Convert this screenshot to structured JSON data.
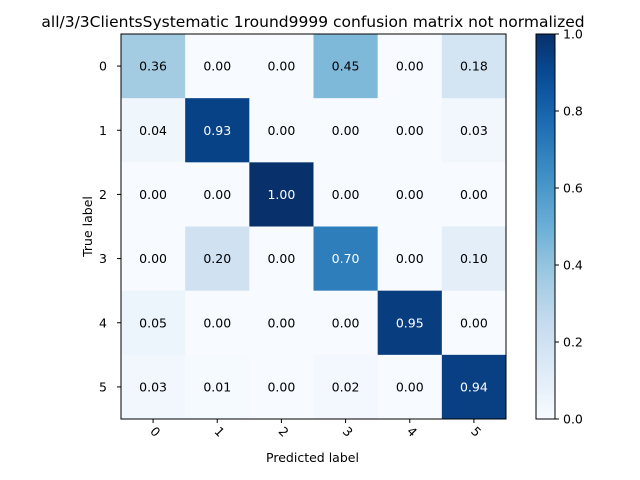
{
  "chart_data": {
    "type": "heatmap",
    "title": "all/3/3ClientsSystematic 1round9999 confusion matrix not normalized",
    "xlabel": "Predicted label",
    "ylabel": "True label",
    "x_categories": [
      "0",
      "1",
      "2",
      "3",
      "4",
      "5"
    ],
    "y_categories": [
      "0",
      "1",
      "2",
      "3",
      "4",
      "5"
    ],
    "values": [
      [
        0.36,
        0.0,
        0.0,
        0.45,
        0.0,
        0.18
      ],
      [
        0.04,
        0.93,
        0.0,
        0.0,
        0.0,
        0.03
      ],
      [
        0.0,
        0.0,
        1.0,
        0.0,
        0.0,
        0.0
      ],
      [
        0.0,
        0.2,
        0.0,
        0.7,
        0.0,
        0.1
      ],
      [
        0.05,
        0.0,
        0.0,
        0.0,
        0.95,
        0.0
      ],
      [
        0.03,
        0.01,
        0.0,
        0.02,
        0.0,
        0.94
      ]
    ],
    "value_format": "0.00",
    "colorbar": {
      "range": [
        0.0,
        1.0
      ],
      "ticks": [
        "0.0",
        "0.2",
        "0.4",
        "0.6",
        "0.8",
        "1.0"
      ],
      "colormap": "Blues"
    },
    "x_tick_rotation_deg": 45,
    "grid": false
  }
}
